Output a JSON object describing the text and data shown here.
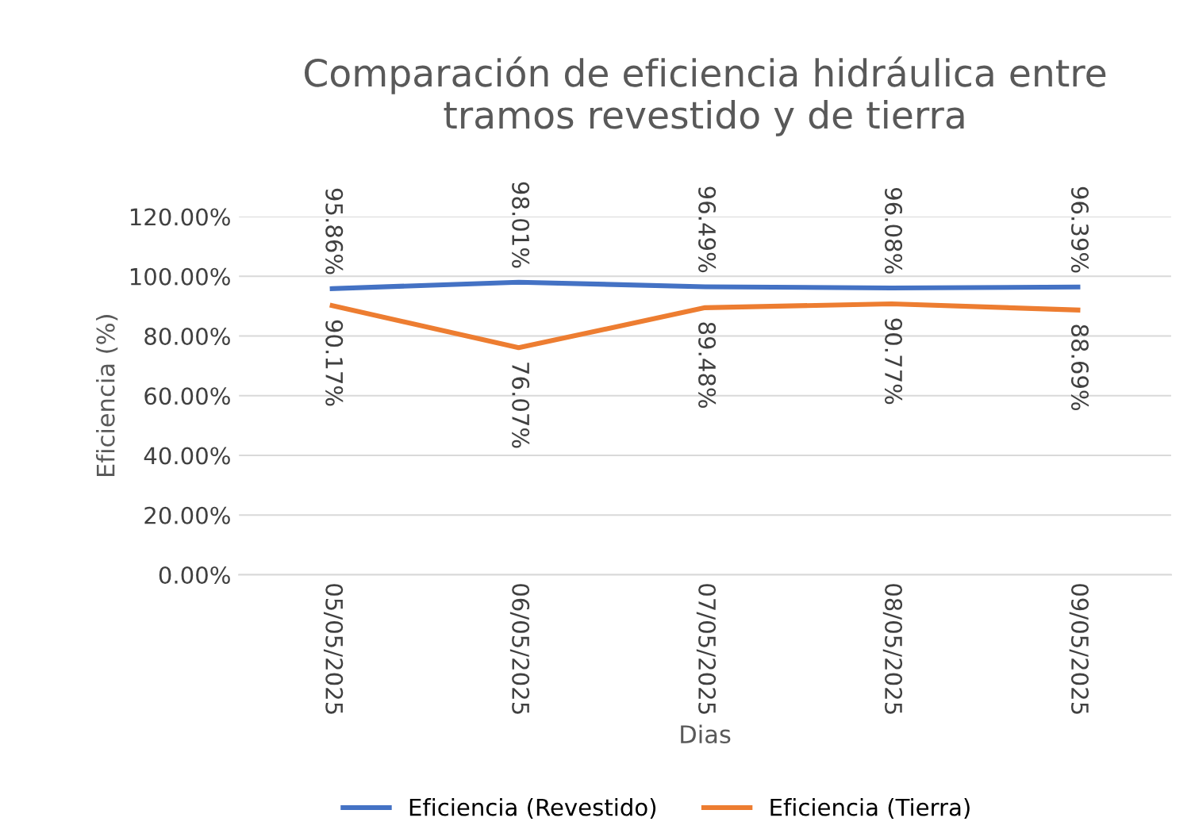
{
  "chart_data": {
    "type": "line",
    "title": "Comparación de eficiencia hidráulica entre\ntramos revestido y de tierra",
    "xlabel": "Dias",
    "ylabel": "Eficiencia (%)",
    "categories": [
      "05/05/2025",
      "06/05/2025",
      "07/05/2025",
      "08/05/2025",
      "09/05/2025"
    ],
    "series": [
      {
        "name": "Eficiencia (Revestido)",
        "color": "#4472c4",
        "values": [
          95.86,
          98.01,
          96.49,
          96.08,
          96.39
        ],
        "value_labels": [
          "95.86%",
          "98.01%",
          "96.49%",
          "96.08%",
          "96.39%"
        ]
      },
      {
        "name": "Eficiencia (Tierra)",
        "color": "#ed7d31",
        "values": [
          90.17,
          76.07,
          89.48,
          90.77,
          88.69
        ],
        "value_labels": [
          "90.17%",
          "76.07%",
          "89.48%",
          "90.77%",
          "88.69%"
        ]
      }
    ],
    "ylim": [
      0,
      120
    ],
    "yticks": [
      {
        "value": 0,
        "label": "0.00%"
      },
      {
        "value": 20,
        "label": "20.00%"
      },
      {
        "value": 40,
        "label": "40.00%"
      },
      {
        "value": 60,
        "label": "60.00%"
      },
      {
        "value": 80,
        "label": "80.00%"
      },
      {
        "value": 100,
        "label": "100.00%"
      },
      {
        "value": 120,
        "label": "120.00%"
      }
    ],
    "grid": "y",
    "legend": "bottom",
    "marker": "none",
    "line_style": "solid"
  }
}
